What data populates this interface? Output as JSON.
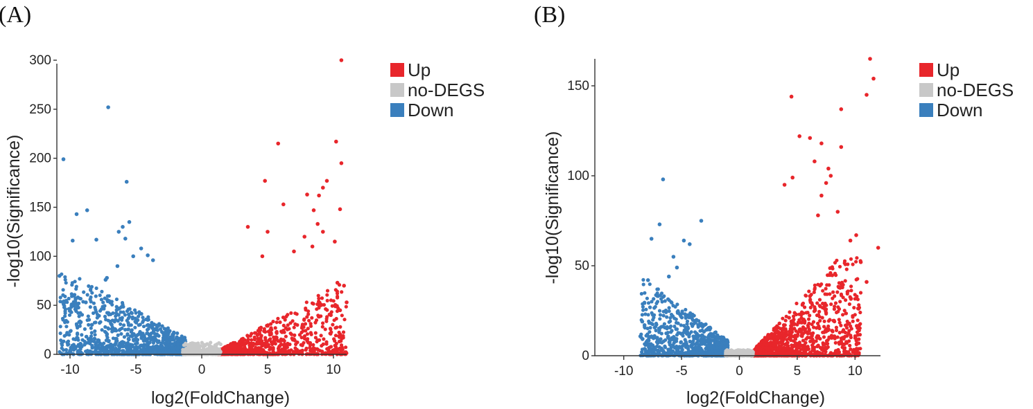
{
  "chart_data": [
    {
      "type": "scatter",
      "panel_label": "(A)",
      "xlabel": "log2(FoldChange)",
      "ylabel": "-log10(Significance)",
      "xlim": [
        -11,
        11
      ],
      "ylim": [
        0,
        300
      ],
      "xticks": [
        -10,
        -5,
        0,
        5,
        10
      ],
      "yticks": [
        0,
        50,
        100,
        150,
        200,
        250,
        300
      ],
      "legend": [
        {
          "name": "Up",
          "color": "#e8262b"
        },
        {
          "name": "no-DEGS",
          "color": "#c8c8c8"
        },
        {
          "name": "Down",
          "color": "#3a7fbd"
        }
      ],
      "legend_position": "top-right outside",
      "series": [
        {
          "name": "Up",
          "color": "#e8262b",
          "points": [
            [
              10.6,
              300
            ],
            [
              5.8,
              215
            ],
            [
              10.2,
              217
            ],
            [
              10.6,
              195
            ],
            [
              4.8,
              177
            ],
            [
              9.5,
              177
            ],
            [
              9.2,
              170
            ],
            [
              8.9,
              162
            ],
            [
              8,
              163
            ],
            [
              6.2,
              153
            ],
            [
              10.5,
              148
            ],
            [
              8.5,
              147
            ],
            [
              8.8,
              133
            ],
            [
              3.5,
              130
            ],
            [
              9.2,
              125
            ],
            [
              5,
              125
            ],
            [
              7.8,
              120
            ],
            [
              8.4,
              110
            ],
            [
              10.1,
              115
            ],
            [
              7,
              105
            ],
            [
              4.6,
              100
            ],
            [
              10.3,
              73
            ],
            [
              10.8,
              70
            ],
            [
              11,
              53
            ],
            [
              10.5,
              45
            ],
            [
              9.8,
              40
            ]
          ]
        },
        {
          "name": "Down",
          "color": "#3a7fbd",
          "points": [
            [
              -7.1,
              252
            ],
            [
              -10.5,
              199
            ],
            [
              -5.7,
              176
            ],
            [
              -9.5,
              143
            ],
            [
              -8.7,
              147
            ],
            [
              -5.5,
              135
            ],
            [
              -6,
              130
            ],
            [
              -6.3,
              125
            ],
            [
              -5.8,
              118
            ],
            [
              -9.8,
              116
            ],
            [
              -8,
              117
            ],
            [
              -10.8,
              80
            ],
            [
              -7.2,
              78
            ],
            [
              -7.3,
              76
            ],
            [
              -4.1,
              101
            ],
            [
              -3.7,
              96
            ],
            [
              -9.4,
              58
            ],
            [
              -9.6,
              46
            ],
            [
              -8.8,
              53
            ],
            [
              -10,
              45
            ],
            [
              -5.2,
              100
            ],
            [
              -4.6,
              108
            ],
            [
              -6.4,
              90
            ]
          ]
        },
        {
          "name": "no-DEGS",
          "color": "#c8c8c8",
          "points": []
        }
      ]
    },
    {
      "type": "scatter",
      "panel_label": "(B)",
      "xlabel": "log2(FoldChange)",
      "ylabel": "-log10(Significance)",
      "xlim": [
        -12.5,
        12.2
      ],
      "ylim": [
        0,
        165
      ],
      "xticks": [
        -10,
        -5,
        0,
        5,
        10
      ],
      "yticks": [
        0,
        50,
        100,
        150
      ],
      "legend": [
        {
          "name": "Up",
          "color": "#e8262b"
        },
        {
          "name": "no-DEGS",
          "color": "#c8c8c8"
        },
        {
          "name": "Down",
          "color": "#3a7fbd"
        }
      ],
      "legend_position": "top-right outside",
      "series": [
        {
          "name": "Up",
          "color": "#e8262b",
          "points": [
            [
              11.3,
              165
            ],
            [
              11.6,
              154
            ],
            [
              11,
              145
            ],
            [
              4.5,
              144
            ],
            [
              8.8,
              137
            ],
            [
              5.2,
              122
            ],
            [
              6.1,
              121
            ],
            [
              7.1,
              118
            ],
            [
              8.8,
              116
            ],
            [
              6.5,
              108
            ],
            [
              7.7,
              104
            ],
            [
              7.9,
              100
            ],
            [
              4.6,
              99
            ],
            [
              7.5,
              96
            ],
            [
              3.9,
              95
            ],
            [
              7.1,
              89
            ],
            [
              8.5,
              80
            ],
            [
              10.1,
              67
            ],
            [
              12,
              60
            ],
            [
              10.5,
              52
            ],
            [
              11,
              41
            ],
            [
              9.6,
              64
            ],
            [
              6.8,
              78
            ]
          ]
        },
        {
          "name": "Down",
          "color": "#3a7fbd",
          "points": [
            [
              -6.6,
              98
            ],
            [
              -3.3,
              75
            ],
            [
              -6.9,
              73
            ],
            [
              -7.6,
              65
            ],
            [
              -4.8,
              64
            ],
            [
              -4.3,
              62
            ],
            [
              -7.9,
              42
            ],
            [
              -8.4,
              19
            ],
            [
              -8.2,
              17
            ],
            [
              -5.7,
              55
            ],
            [
              -5.4,
              49
            ],
            [
              -6.1,
              44
            ]
          ]
        },
        {
          "name": "no-DEGS",
          "color": "#c8c8c8",
          "points": []
        }
      ]
    }
  ]
}
